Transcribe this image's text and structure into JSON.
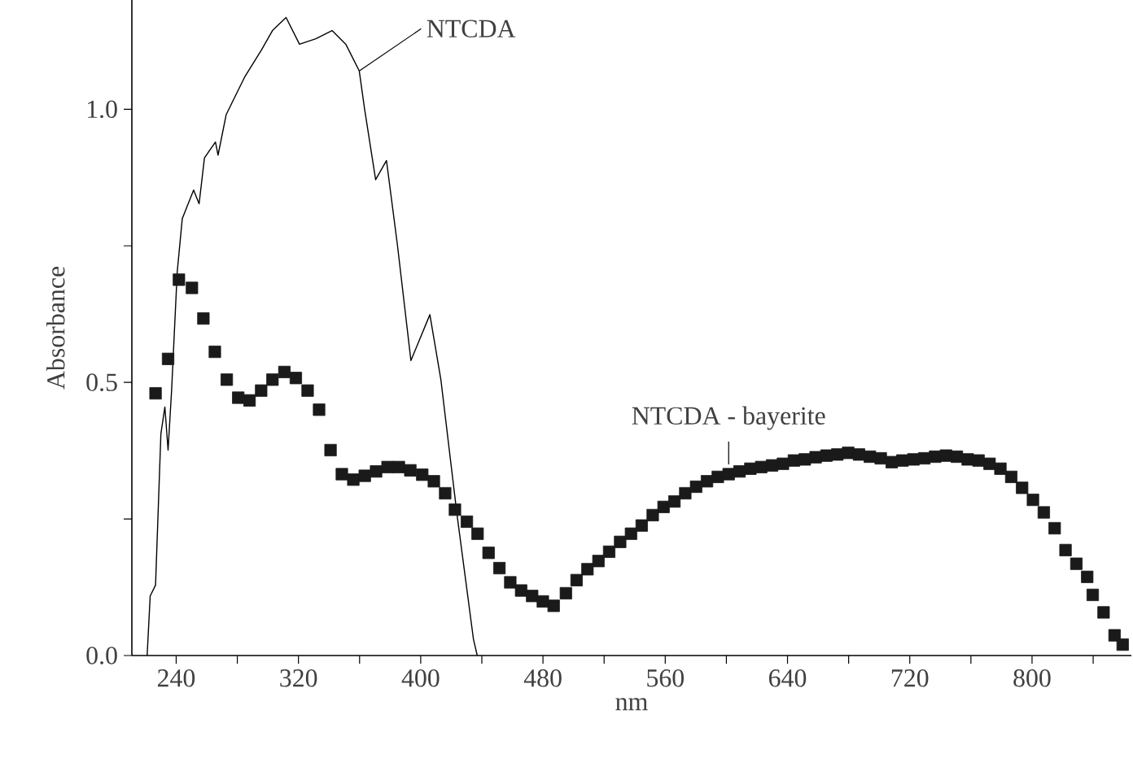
{
  "chart_data": {
    "type": "line",
    "xlabel": "nm",
    "ylabel": "Absorbance",
    "xlim": [
      211,
      865
    ],
    "ylim": [
      0,
      1.2
    ],
    "xticks": [
      240,
      {
        "value": 280,
        "label": null
      },
      320,
      {
        "value": 360,
        "label": null
      },
      400,
      {
        "value": 440,
        "label": null
      },
      480,
      {
        "value": 520,
        "label": null
      },
      560,
      {
        "value": 600,
        "label": null
      },
      640,
      {
        "value": 680,
        "label": null
      },
      720,
      {
        "value": 760,
        "label": null
      },
      800,
      {
        "value": 840,
        "label": null
      }
    ],
    "yticks": [
      {
        "value": 0,
        "label": "0.0"
      },
      {
        "value": 0.25,
        "label": null
      },
      {
        "value": 0.5,
        "label": "0.5"
      },
      {
        "value": 0.75,
        "label": null
      },
      {
        "value": 1.0,
        "label": "1.0"
      }
    ],
    "grid": false,
    "legend": false,
    "series": [
      {
        "name": "NTCDA",
        "type": "line",
        "marker": "none",
        "color": "#000000",
        "x": [
          221,
          223,
          226.5,
          230,
          232.6,
          234.7,
          237,
          240.7,
          244,
          251.4,
          255,
          258.5,
          265.7,
          267.4,
          272.7,
          285,
          295.9,
          303,
          311.9,
          320.7,
          331.4,
          342,
          351,
          359.8,
          363.3,
          370.5,
          377.6,
          384.7,
          393.6,
          406,
          413.2,
          423.8,
          434.5,
          437
        ],
        "values": [
          0,
          0.109,
          0.129,
          0.406,
          0.455,
          0.376,
          0.485,
          0.703,
          0.8,
          0.852,
          0.827,
          0.911,
          0.94,
          0.916,
          0.99,
          1.06,
          1.109,
          1.144,
          1.168,
          1.119,
          1.129,
          1.144,
          1.119,
          1.07,
          1.0,
          0.871,
          0.906,
          0.753,
          0.54,
          0.624,
          0.505,
          0.257,
          0.03,
          0
        ]
      },
      {
        "name": "NTCDA - bayerite",
        "type": "scatter",
        "marker": "square",
        "color": "#1a1a1a",
        "x": [
          226.5,
          234.7,
          241.8,
          250.3,
          257.8,
          265.3,
          273.1,
          280.6,
          288,
          295.6,
          303,
          310.8,
          318.3,
          326,
          333.5,
          341,
          348.4,
          355.9,
          363.4,
          370.8,
          378.3,
          385.7,
          393.2,
          401,
          408.6,
          416,
          422.4,
          430.2,
          437.2,
          444.4,
          451.5,
          458.6,
          465.7,
          472.9,
          479.9,
          487,
          495,
          502,
          509.1,
          516.3,
          523.3,
          530.5,
          537.6,
          544.6,
          551.8,
          558.9,
          566,
          573.1,
          580.2,
          587.3,
          594.4,
          601.5,
          608.6,
          615.7,
          622.8,
          629.9,
          637,
          644.2,
          651.3,
          658.4,
          665.5,
          672.6,
          679.7,
          686.8,
          693.9,
          701,
          708.2,
          715.2,
          722.4,
          729.5,
          736.6,
          743.7,
          750.8,
          757.9,
          765,
          772.2,
          779.3,
          786.4,
          793.5,
          800.6,
          807.7,
          814.8,
          821.9,
          829,
          836.1,
          839.7,
          846.8,
          854,
          859.3
        ],
        "values": [
          0.48,
          0.543,
          0.688,
          0.673,
          0.617,
          0.556,
          0.505,
          0.472,
          0.467,
          0.485,
          0.505,
          0.519,
          0.508,
          0.485,
          0.45,
          0.376,
          0.332,
          0.322,
          0.329,
          0.337,
          0.345,
          0.345,
          0.339,
          0.331,
          0.319,
          0.297,
          0.267,
          0.245,
          0.223,
          0.188,
          0.16,
          0.134,
          0.119,
          0.109,
          0.099,
          0.091,
          0.114,
          0.138,
          0.158,
          0.173,
          0.19,
          0.208,
          0.223,
          0.238,
          0.257,
          0.272,
          0.282,
          0.297,
          0.309,
          0.319,
          0.327,
          0.332,
          0.337,
          0.342,
          0.345,
          0.348,
          0.351,
          0.357,
          0.359,
          0.363,
          0.366,
          0.368,
          0.371,
          0.368,
          0.364,
          0.361,
          0.354,
          0.357,
          0.359,
          0.361,
          0.364,
          0.366,
          0.364,
          0.359,
          0.357,
          0.351,
          0.342,
          0.327,
          0.307,
          0.285,
          0.262,
          0.233,
          0.193,
          0.168,
          0.144,
          0.111,
          0.079,
          0.037,
          0.02
        ]
      }
    ]
  }
}
